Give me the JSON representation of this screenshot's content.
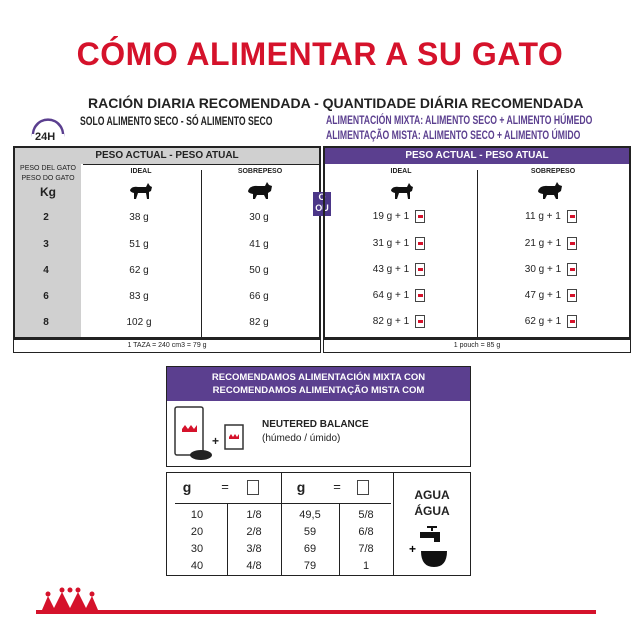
{
  "title": "CÓMO ALIMENTAR A SU GATO",
  "subtitle": "RACIÓN DIARIA RECOMENDADA - QUANTIDADE DIÁRIA RECOMENDADA",
  "dry_only": "SOLO ALIMENTO SECO - SÓ ALIMENTO SECO",
  "mixed_es": "ALIMENTACIÓN MIXTA: ALIMENTO SECO + ALIMENTO HÚMEDO",
  "mixed_pt": "ALIMENTAÇÃO MISTA: ALIMENTO SECO + ALIMENTO ÚMIDO",
  "clock_label": "24H",
  "or_label": [
    "O",
    "OU"
  ],
  "weight_col": [
    "PESO DEL GATO",
    "PESO DO GATO",
    "Kg"
  ],
  "header": "PESO ACTUAL - PESO ATUAL",
  "ideal": "IDEAL",
  "overweight": "SOBREPESO",
  "rows": [
    {
      "kg": "2",
      "dry_ideal": "38 g",
      "dry_over": "30 g",
      "mix_ideal": "19 g + 1",
      "mix_over": "11 g + 1"
    },
    {
      "kg": "3",
      "dry_ideal": "51 g",
      "dry_over": "41 g",
      "mix_ideal": "31 g + 1",
      "mix_over": "21 g + 1"
    },
    {
      "kg": "4",
      "dry_ideal": "62 g",
      "dry_over": "50 g",
      "mix_ideal": "43 g + 1",
      "mix_over": "30 g + 1"
    },
    {
      "kg": "6",
      "dry_ideal": "83 g",
      "dry_over": "66 g",
      "mix_ideal": "64 g + 1",
      "mix_over": "47 g + 1"
    },
    {
      "kg": "8",
      "dry_ideal": "102 g",
      "dry_over": "82 g",
      "mix_ideal": "82 g + 1",
      "mix_over": "62 g + 1"
    }
  ],
  "dry_footer": "1 TAZA = 240 cm3 = 79 g",
  "mix_footer": "1 pouch = 85 g",
  "recommend": [
    "RECOMENDAMOS ALIMENTACIÓN MIXTA CON",
    "RECOMENDAMOS ALIMENTAÇÃO MISTA COM"
  ],
  "product": "NEUTERED BALANCE",
  "product_type": "(húmedo / úmido)",
  "conv_header": [
    "g",
    "=",
    "g",
    "="
  ],
  "conv": [
    [
      "10",
      "1/8",
      "49,5",
      "5/8"
    ],
    [
      "20",
      "2/8",
      "59",
      "6/8"
    ],
    [
      "30",
      "3/8",
      "69",
      "7/8"
    ],
    [
      "40",
      "4/8",
      "79",
      "1"
    ]
  ],
  "water": [
    "AGUA",
    "ÁGUA"
  ],
  "colors": {
    "red": "#d5122b",
    "purple": "#5b3f8f",
    "gray": "#d0d0d0"
  }
}
